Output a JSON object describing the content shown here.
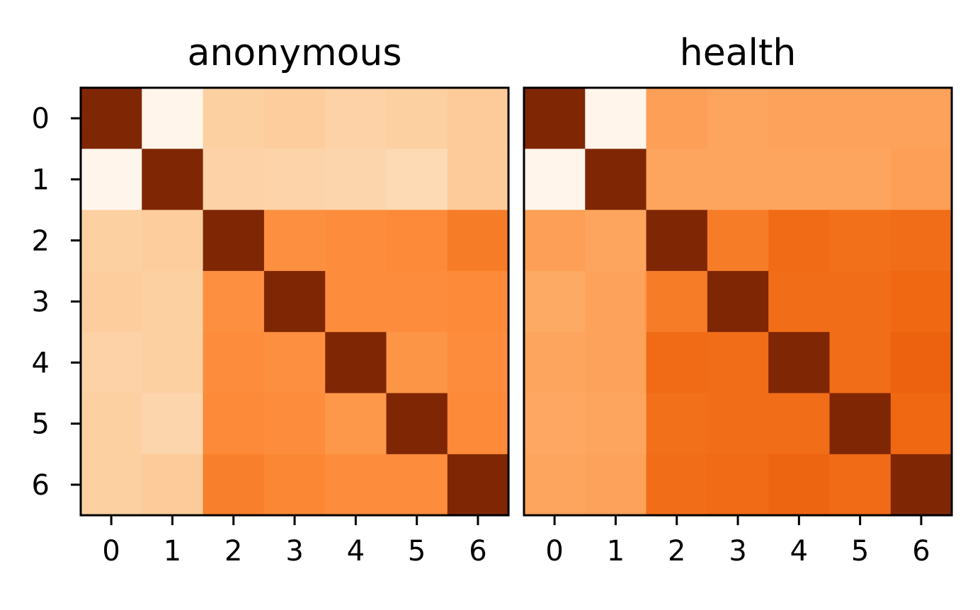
{
  "chart_data": [
    {
      "type": "heatmap",
      "title": "anonymous",
      "x_ticks": [
        "0",
        "1",
        "2",
        "3",
        "4",
        "5",
        "6"
      ],
      "y_ticks": [
        "0",
        "1",
        "2",
        "3",
        "4",
        "5",
        "6"
      ],
      "colormap": "Oranges",
      "show_y_ticks": true,
      "grid": false,
      "values": [
        [
          1.0,
          0.0,
          0.25,
          0.26,
          0.24,
          0.25,
          0.27
        ],
        [
          0.0,
          1.0,
          0.24,
          0.23,
          0.22,
          0.2,
          0.27
        ],
        [
          0.25,
          0.26,
          1.0,
          0.49,
          0.5,
          0.51,
          0.56
        ],
        [
          0.26,
          0.25,
          0.49,
          1.0,
          0.5,
          0.5,
          0.51
        ],
        [
          0.24,
          0.25,
          0.5,
          0.49,
          1.0,
          0.47,
          0.5
        ],
        [
          0.25,
          0.22,
          0.51,
          0.5,
          0.46,
          1.0,
          0.51
        ],
        [
          0.25,
          0.27,
          0.55,
          0.52,
          0.5,
          0.5,
          1.0
        ]
      ]
    },
    {
      "type": "heatmap",
      "title": "health",
      "x_ticks": [
        "0",
        "1",
        "2",
        "3",
        "4",
        "5",
        "6"
      ],
      "y_ticks": [
        "0",
        "1",
        "2",
        "3",
        "4",
        "5",
        "6"
      ],
      "colormap": "Oranges",
      "show_y_ticks": false,
      "grid": false,
      "values": [
        [
          1.0,
          0.0,
          0.43,
          0.41,
          0.42,
          0.42,
          0.42
        ],
        [
          0.0,
          1.0,
          0.41,
          0.41,
          0.41,
          0.41,
          0.43
        ],
        [
          0.43,
          0.41,
          1.0,
          0.56,
          0.62,
          0.6,
          0.61
        ],
        [
          0.39,
          0.42,
          0.56,
          1.0,
          0.61,
          0.61,
          0.63
        ],
        [
          0.41,
          0.42,
          0.62,
          0.61,
          1.0,
          0.61,
          0.65
        ],
        [
          0.4,
          0.41,
          0.6,
          0.61,
          0.61,
          1.0,
          0.63
        ],
        [
          0.41,
          0.42,
          0.61,
          0.62,
          0.64,
          0.62,
          1.0
        ]
      ]
    }
  ]
}
